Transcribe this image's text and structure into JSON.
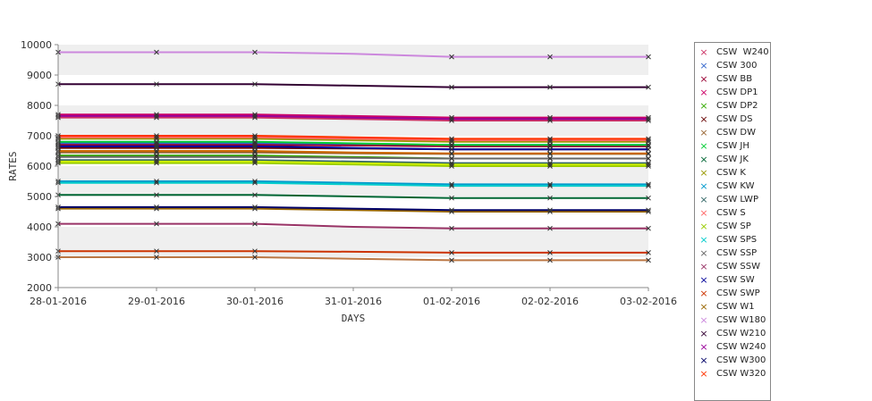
{
  "chart_data": {
    "type": "line",
    "xlabel": "DAYS",
    "ylabel": "RATES",
    "ylim": [
      2000,
      10000
    ],
    "yticks": [
      2000,
      3000,
      4000,
      5000,
      6000,
      7000,
      8000,
      9000,
      10000
    ],
    "grid": "alternating horizontal bands",
    "legend_position": "right",
    "categories": [
      "28-01-2016",
      "29-01-2016",
      "30-01-2016",
      "31-01-2016",
      "01-02-2016",
      "02-02-2016",
      "03-02-2016"
    ],
    "marker_x": [
      0,
      1,
      2,
      4,
      5,
      6
    ],
    "series": [
      {
        "name": "CSW  W240",
        "color": "#cc3366",
        "values": [
          7600,
          7600,
          7600,
          7550,
          7500,
          7500,
          7500
        ]
      },
      {
        "name": "CSW 300",
        "color": "#3366cc",
        "values": [
          6750,
          6750,
          6750,
          6720,
          6700,
          6700,
          6700
        ]
      },
      {
        "name": "CSW BB",
        "color": "#990033",
        "values": [
          6700,
          6700,
          6700,
          6680,
          6650,
          6650,
          6650
        ]
      },
      {
        "name": "CSW DP1",
        "color": "#cc0066",
        "values": [
          7700,
          7700,
          7700,
          7650,
          7600,
          7600,
          7600
        ]
      },
      {
        "name": "CSW DP2",
        "color": "#33aa00",
        "values": [
          6350,
          6350,
          6350,
          6300,
          6250,
          6250,
          6250
        ]
      },
      {
        "name": "CSW DS",
        "color": "#660000",
        "values": [
          6600,
          6600,
          6600,
          6580,
          6550,
          6550,
          6550
        ]
      },
      {
        "name": "CSW DW",
        "color": "#996633",
        "values": [
          6450,
          6450,
          6450,
          6420,
          6400,
          6400,
          6400
        ]
      },
      {
        "name": "CSW JH",
        "color": "#00cc33",
        "values": [
          6800,
          6800,
          6800,
          6750,
          6700,
          6700,
          6700
        ]
      },
      {
        "name": "CSW JK",
        "color": "#006633",
        "values": [
          5050,
          5050,
          5050,
          5000,
          4950,
          4950,
          4950
        ]
      },
      {
        "name": "CSW K",
        "color": "#999900",
        "values": [
          6900,
          6900,
          6900,
          6850,
          6800,
          6800,
          6800
        ]
      },
      {
        "name": "CSW KW",
        "color": "#0099cc",
        "values": [
          5500,
          5500,
          5500,
          5450,
          5400,
          5400,
          5400
        ]
      },
      {
        "name": "CSW LWP",
        "color": "#336666",
        "values": [
          6200,
          6200,
          6200,
          6150,
          6100,
          6100,
          6100
        ]
      },
      {
        "name": "CSW S",
        "color": "#ff6666",
        "values": [
          6950,
          6950,
          6950,
          6900,
          6850,
          6850,
          6850
        ]
      },
      {
        "name": "CSW SP",
        "color": "#99cc00",
        "values": [
          6100,
          6100,
          6100,
          6050,
          6000,
          6000,
          6000
        ]
      },
      {
        "name": "CSW SPS",
        "color": "#00cccc",
        "values": [
          5450,
          5450,
          5450,
          5400,
          5350,
          5350,
          5350
        ]
      },
      {
        "name": "CSW SSP",
        "color": "#666666",
        "values": [
          6300,
          6300,
          6300,
          6270,
          6250,
          6250,
          6250
        ]
      },
      {
        "name": "CSW SSW",
        "color": "#993366",
        "values": [
          4100,
          4100,
          4100,
          4000,
          3950,
          3950,
          3950
        ]
      },
      {
        "name": "CSW SW",
        "color": "#000099",
        "values": [
          6650,
          6650,
          6650,
          6600,
          6550,
          6550,
          6550
        ]
      },
      {
        "name": "CSW SWP",
        "color": "#cc3300",
        "values": [
          3200,
          3200,
          3200,
          3180,
          3150,
          3150,
          3150
        ]
      },
      {
        "name": "CSW W1",
        "color": "#996600",
        "values": [
          4600,
          4600,
          4600,
          4550,
          4500,
          4500,
          4500
        ]
      },
      {
        "name": "CSW W180",
        "color": "#cc88dd",
        "values": [
          9750,
          9750,
          9750,
          9700,
          9600,
          9600,
          9600
        ]
      },
      {
        "name": "CSW W210",
        "color": "#330033",
        "values": [
          8700,
          8700,
          8700,
          8650,
          8600,
          8600,
          8600
        ]
      },
      {
        "name": "CSW W240",
        "color": "#990099",
        "values": [
          7650,
          7650,
          7650,
          7600,
          7550,
          7550,
          7550
        ]
      },
      {
        "name": "CSW W300",
        "color": "#000066",
        "values": [
          4650,
          4650,
          4650,
          4600,
          4550,
          4550,
          4550
        ]
      },
      {
        "name": "CSW W320",
        "color": "#ff3300",
        "values": [
          7000,
          7000,
          7000,
          6950,
          6900,
          6900,
          6900
        ]
      },
      {
        "name": "",
        "color": "#bb7744",
        "values": [
          3000,
          3000,
          3000,
          2950,
          2900,
          2900,
          2900
        ]
      },
      {
        "name": "",
        "color": "#ccee00",
        "values": [
          6150,
          6150,
          6150,
          6100,
          6050,
          6050,
          6050
        ]
      },
      {
        "name": "",
        "color": "#cc6600",
        "values": [
          6500,
          6500,
          6500,
          6450,
          6420,
          6420,
          6420
        ]
      }
    ]
  }
}
